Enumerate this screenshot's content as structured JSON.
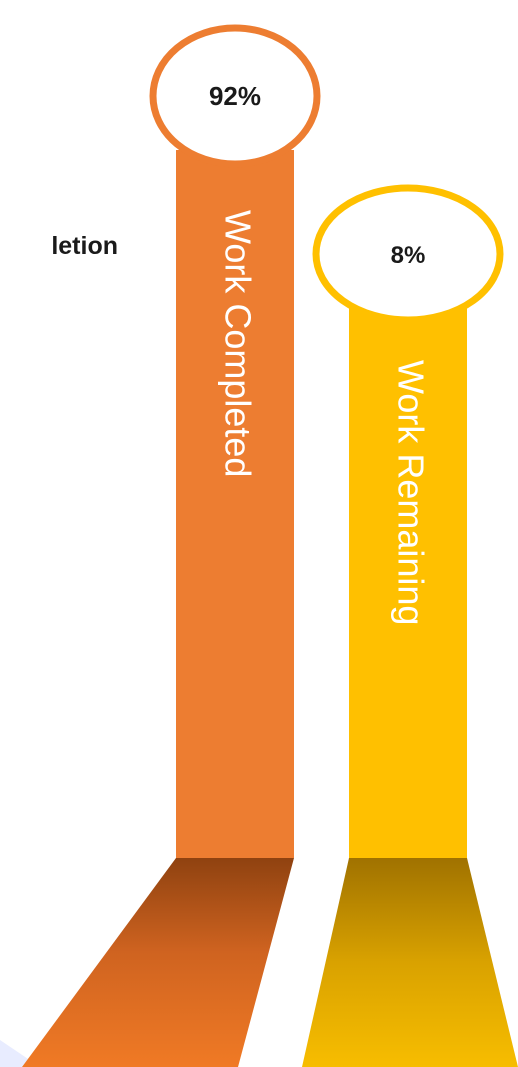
{
  "heading": "letion",
  "colors": {
    "completed": "#ED7D31",
    "remaining": "#FFC000",
    "text": "#1a1a1a",
    "bubble_fill": "#ffffff"
  },
  "chart_data": {
    "type": "bar",
    "categories": [
      "Work Completed",
      "Work Remaining"
    ],
    "values": [
      92,
      8
    ],
    "unit": "%",
    "series": [
      {
        "name": "Work Completed",
        "value": 92,
        "label": "92%",
        "color": "#ED7D31"
      },
      {
        "name": "Work Remaining",
        "value": 8,
        "label": "8%",
        "color": "#FFC000"
      }
    ]
  }
}
